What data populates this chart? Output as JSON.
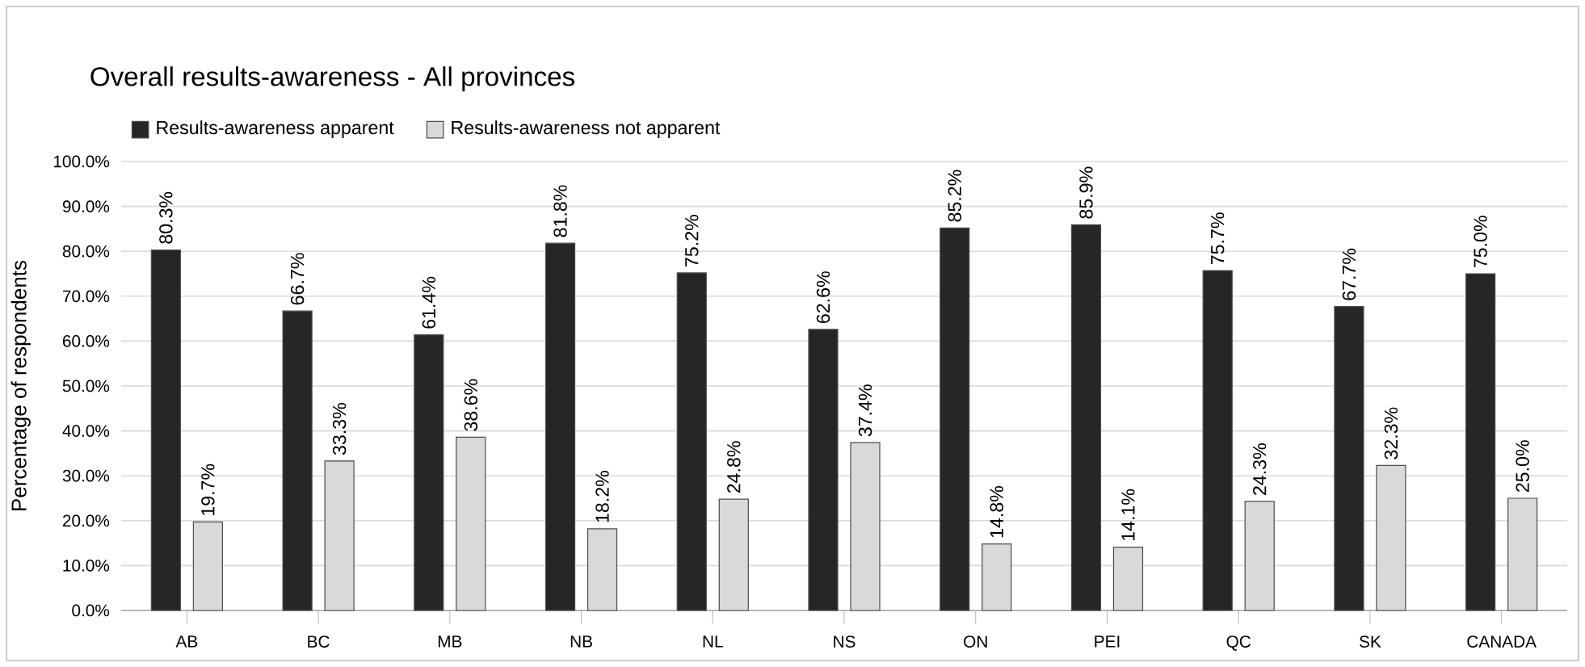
{
  "chart_data": {
    "type": "bar",
    "title": "Overall results-awareness - All provinces",
    "ylabel": "Percentage of respondents",
    "categories": [
      "AB",
      "BC",
      "MB",
      "NB",
      "NL",
      "NS",
      "ON",
      "PEI",
      "QC",
      "SK",
      "CANADA"
    ],
    "series": [
      {
        "name": "Results-awareness apparent",
        "color": "#262626",
        "values": [
          80.3,
          66.7,
          61.4,
          81.8,
          75.2,
          62.6,
          85.2,
          85.9,
          75.7,
          67.7,
          75.0
        ],
        "value_labels": [
          "80.3%",
          "66.7%",
          "61.4%",
          "81.8%",
          "75.2%",
          "62.6%",
          "85.2%",
          "85.9%",
          "75.7%",
          "67.7%",
          "75.0%"
        ]
      },
      {
        "name": "Results-awareness not apparent",
        "color": "#d9d9d9",
        "values": [
          19.7,
          33.3,
          38.6,
          18.2,
          24.8,
          37.4,
          14.8,
          14.1,
          24.3,
          32.3,
          25.0
        ],
        "value_labels": [
          "19.7%",
          "33.3%",
          "38.6%",
          "18.2%",
          "24.8%",
          "37.4%",
          "14.8%",
          "14.1%",
          "24.3%",
          "32.3%",
          "25.0%"
        ]
      }
    ],
    "ylim": [
      0,
      100
    ],
    "yticks": [
      {
        "value": 0,
        "label": "0.0%"
      },
      {
        "value": 10,
        "label": "10.0%"
      },
      {
        "value": 20,
        "label": "20.0%"
      },
      {
        "value": 30,
        "label": "30.0%"
      },
      {
        "value": 40,
        "label": "40.0%"
      },
      {
        "value": 50,
        "label": "50.0%"
      },
      {
        "value": 60,
        "label": "60.0%"
      },
      {
        "value": 70,
        "label": "70.0%"
      },
      {
        "value": 80,
        "label": "80.0%"
      },
      {
        "value": 90,
        "label": "90.0%"
      },
      {
        "value": 100,
        "label": "100.0%"
      }
    ],
    "grid": "y",
    "legend": "top left"
  }
}
